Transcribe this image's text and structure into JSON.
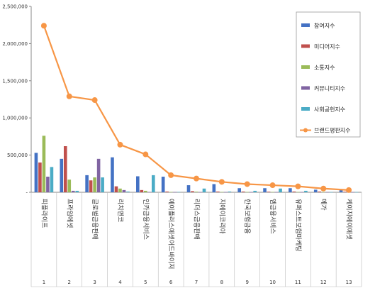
{
  "chart_data": {
    "type": "bar",
    "title": "",
    "xlabel": "",
    "ylabel": "",
    "ylim": [
      0,
      2500000
    ],
    "yticks": [
      0,
      500000,
      1000000,
      1500000,
      2000000,
      2500000
    ],
    "ytick_labels": [
      "-",
      "500,000",
      "1,000,000",
      "1,500,000",
      "2,000,000",
      "2,500,000"
    ],
    "grid": false,
    "legend_position": "right",
    "categories": [
      "피플라이프",
      "프라임에셋",
      "글로벌금융판매",
      "리치앤코",
      "인카금융서비스",
      "에이플러스에셋어드바이저",
      "리더스금융판매",
      "지에이코리아",
      "한국보험금융",
      "엠금융서비스",
      "유퍼스트보험마케팅",
      "메가",
      "케이지에이에셋"
    ],
    "category_numbers": [
      "1",
      "2",
      "3",
      "4",
      "5",
      "6",
      "7",
      "8",
      "9",
      "10",
      "11",
      "12",
      "13"
    ],
    "series": [
      {
        "name": "참여지수",
        "kind": "bar",
        "color": "#4472C4",
        "values": [
          530000,
          450000,
          230000,
          470000,
          215000,
          210000,
          95000,
          110000,
          55000,
          55000,
          55000,
          35000,
          30000
        ]
      },
      {
        "name": "미디어지수",
        "kind": "bar",
        "color": "#C0504D",
        "values": [
          400000,
          620000,
          160000,
          80000,
          30000,
          10000,
          15000,
          10000,
          10000,
          8000,
          10000,
          10000,
          8000
        ]
      },
      {
        "name": "소통지수",
        "kind": "bar",
        "color": "#9BBB59",
        "values": [
          760000,
          170000,
          200000,
          50000,
          20000,
          5000,
          8000,
          5000,
          5000,
          5000,
          5000,
          5000,
          5000
        ]
      },
      {
        "name": "커뮤니티지수",
        "kind": "bar",
        "color": "#8064A2",
        "values": [
          210000,
          20000,
          450000,
          30000,
          5000,
          3000,
          3000,
          3000,
          3000,
          3000,
          3000,
          3000,
          3000
        ]
      },
      {
        "name": "사회공헌지수",
        "kind": "bar",
        "color": "#4BACC6",
        "values": [
          340000,
          20000,
          200000,
          10000,
          230000,
          5000,
          50000,
          10000,
          20000,
          50000,
          20000,
          3000,
          3000
        ]
      },
      {
        "name": "브랜드평판지수",
        "kind": "line",
        "color": "#F79646",
        "values": [
          2240000,
          1290000,
          1240000,
          640000,
          510000,
          230000,
          185000,
          140000,
          110000,
          95000,
          80000,
          50000,
          30000
        ]
      }
    ]
  }
}
